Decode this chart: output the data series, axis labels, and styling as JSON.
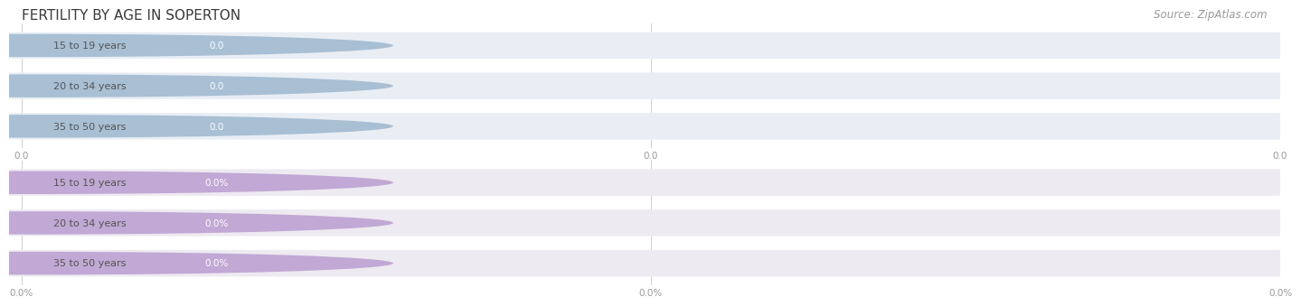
{
  "title": "FERTILITY BY AGE IN SOPERTON",
  "title_color": "#3a3a3a",
  "title_fontsize": 11,
  "source_text": "Source: ZipAtlas.com",
  "source_color": "#999999",
  "source_fontsize": 8.5,
  "background_color": "#ffffff",
  "top_chart": {
    "categories": [
      "15 to 19 years",
      "20 to 34 years",
      "35 to 50 years"
    ],
    "values": [
      0.0,
      0.0,
      0.0
    ],
    "bar_bg_color": "#e9eef4",
    "bar_fill_color": "#a8bfd4",
    "value_badge_color": "#a8bfd4",
    "x_tick_labels": [
      "0.0",
      "0.0",
      "0.0"
    ],
    "x_tick_positions": [
      0.0,
      0.5,
      1.0
    ]
  },
  "bottom_chart": {
    "categories": [
      "15 to 19 years",
      "20 to 34 years",
      "35 to 50 years"
    ],
    "values": [
      0.0,
      0.0,
      0.0
    ],
    "bar_bg_color": "#edeaf2",
    "bar_fill_color": "#c2a8d4",
    "value_badge_color": "#c2a8d4",
    "x_tick_labels": [
      "0.0%",
      "0.0%",
      "0.0%"
    ],
    "x_tick_positions": [
      0.0,
      0.5,
      1.0
    ]
  },
  "label_fontsize": 8.0,
  "value_fontsize": 7.5,
  "tick_fontsize": 7.5,
  "tick_color": "#999999",
  "grid_color": "#d0d0d0",
  "label_text_color": "#555555"
}
